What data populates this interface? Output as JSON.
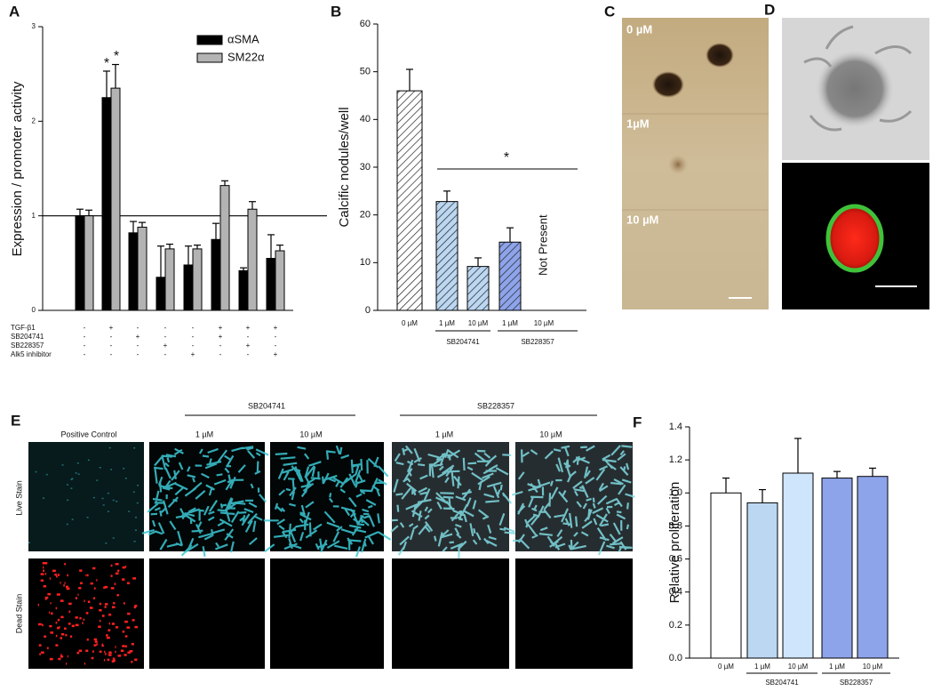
{
  "chart_data": [
    {
      "type": "bar",
      "panel": "A",
      "y_label": "Expression / promoter activity",
      "ylim": [
        0,
        3
      ],
      "yticks": [
        0,
        1,
        2,
        3
      ],
      "reference_line": 1,
      "series": [
        {
          "name": "αSMA",
          "color": "#000000",
          "values": [
            1.0,
            2.25,
            0.82,
            0.35,
            0.48,
            0.75,
            0.42,
            0.55
          ],
          "errors": [
            0.07,
            0.28,
            0.12,
            0.33,
            0.2,
            0.17,
            0.03,
            0.25
          ]
        },
        {
          "name": "SM22α",
          "color": "#b3b3b3",
          "values": [
            1.0,
            2.35,
            0.88,
            0.65,
            0.65,
            1.32,
            1.07,
            0.63
          ],
          "errors": [
            0.06,
            0.25,
            0.05,
            0.05,
            0.04,
            0.05,
            0.08,
            0.06
          ]
        }
      ],
      "annotations": [
        "*",
        "*"
      ],
      "treatments": [
        {
          "name": "TGF-β1",
          "signs": [
            "-",
            "+",
            "-",
            "-",
            "-",
            "+",
            "+",
            "+"
          ]
        },
        {
          "name": "SB204741",
          "signs": [
            "-",
            "-",
            "+",
            "-",
            "-",
            "+",
            "-",
            "-"
          ]
        },
        {
          "name": "SB228357",
          "signs": [
            "-",
            "-",
            "-",
            "+",
            "-",
            "-",
            "+",
            "-"
          ]
        },
        {
          "name": "Alk5 inhibitor",
          "signs": [
            "-",
            "-",
            "-",
            "-",
            "+",
            "-",
            "-",
            "+"
          ]
        }
      ]
    },
    {
      "type": "bar",
      "panel": "B",
      "y_label": "Calcific nodules/well",
      "ylim": [
        0,
        60
      ],
      "yticks": [
        0,
        10,
        20,
        30,
        40,
        50,
        60
      ],
      "categories": [
        "0 µM",
        "1 µM",
        "10 µM",
        "1 µM",
        "10 µM"
      ],
      "values": [
        46,
        22.8,
        9.2,
        14.3,
        null
      ],
      "errors": [
        4.5,
        2.2,
        1.8,
        3.0,
        null
      ],
      "colors": [
        "#ffffff",
        "#bcd7f2",
        "#bcd7f2",
        "#8ea4ea",
        null
      ],
      "hatch": true,
      "groups": [
        "SB204741",
        "SB228357"
      ],
      "annotations": [
        "*",
        "Not Present"
      ]
    },
    {
      "type": "bar",
      "panel": "F",
      "y_label": "Relative proliferation",
      "ylim": [
        0,
        1.4
      ],
      "yticks": [
        {
          "value": 0,
          "label": "0.0"
        },
        0.2,
        0.4,
        0.6,
        0.8,
        {
          "value": 1,
          "label": "1.0"
        },
        1.2,
        1.4
      ],
      "categories": [
        "0 µM",
        "1 µM",
        "10 µM",
        "1 µM",
        "10 µM"
      ],
      "values": [
        1.0,
        0.94,
        1.12,
        1.09,
        1.1
      ],
      "errors": [
        0.09,
        0.08,
        0.21,
        0.04,
        0.05
      ],
      "colors": [
        "#ffffff",
        "#bcd7f2",
        "#cfe5fb",
        "#8ea4ea",
        "#8ea4ea"
      ],
      "groups": [
        "SB204741",
        "SB228357"
      ]
    }
  ],
  "panels": {
    "C": {
      "letter": "C",
      "labels": [
        "0 µM",
        "1µM",
        "10 µM"
      ]
    },
    "D": {
      "letter": "D"
    },
    "E": {
      "letter": "E",
      "columns": [
        "Positive Control",
        "1 µM",
        "10 µM",
        "1 µM",
        "10 µM"
      ],
      "groups": [
        "SB204741",
        "SB228357"
      ],
      "rows": [
        "Live Stain",
        "Dead Stain"
      ]
    }
  }
}
